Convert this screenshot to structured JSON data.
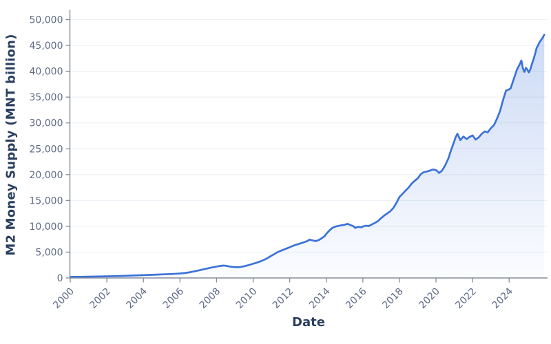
{
  "chart": {
    "y_axis_title": "M2 Money Supply (MNT billion)",
    "x_axis_title": "Date"
  },
  "chart_data": {
    "type": "area",
    "title": "",
    "xlabel": "Date",
    "ylabel": "M2 Money Supply (MNT billion)",
    "legend": "none",
    "grid": "horizontal-only",
    "x_ticks": [
      2000,
      2002,
      2004,
      2006,
      2008,
      2010,
      2012,
      2014,
      2016,
      2018,
      2020,
      2022,
      2024
    ],
    "y_ticks": [
      0,
      5000,
      10000,
      15000,
      20000,
      25000,
      30000,
      35000,
      40000,
      45000,
      50000
    ],
    "xlim": [
      2000,
      2026.1
    ],
    "ylim": [
      0,
      50000
    ],
    "colors": {
      "line": "#3b72d9",
      "fill_base": "#3b72d9",
      "fill_top_opacity": 0.26,
      "fill_bottom_opacity": 0.02,
      "axis_line": "#848b98",
      "tick_label": "#5d6a86",
      "grid_line": "#eef1f5",
      "title": "#2a3f5f"
    },
    "series": [
      {
        "name": "M2 Money Supply",
        "units": "MNT billion",
        "points": [
          [
            2000.0,
            210
          ],
          [
            2000.25,
            218
          ],
          [
            2000.5,
            228
          ],
          [
            2000.75,
            240
          ],
          [
            2001.0,
            252
          ],
          [
            2001.25,
            266
          ],
          [
            2001.5,
            280
          ],
          [
            2001.75,
            296
          ],
          [
            2002.0,
            315
          ],
          [
            2002.25,
            338
          ],
          [
            2002.5,
            362
          ],
          [
            2002.75,
            388
          ],
          [
            2003.0,
            418
          ],
          [
            2003.25,
            448
          ],
          [
            2003.5,
            478
          ],
          [
            2003.75,
            512
          ],
          [
            2004.0,
            552
          ],
          [
            2004.25,
            586
          ],
          [
            2004.5,
            618
          ],
          [
            2004.75,
            652
          ],
          [
            2005.0,
            688
          ],
          [
            2005.25,
            722
          ],
          [
            2005.5,
            760
          ],
          [
            2005.75,
            808
          ],
          [
            2006.0,
            866
          ],
          [
            2006.25,
            948
          ],
          [
            2006.5,
            1080
          ],
          [
            2006.75,
            1260
          ],
          [
            2007.0,
            1440
          ],
          [
            2007.25,
            1640
          ],
          [
            2007.5,
            1840
          ],
          [
            2007.75,
            2040
          ],
          [
            2008.0,
            2200
          ],
          [
            2008.17,
            2310
          ],
          [
            2008.33,
            2400
          ],
          [
            2008.5,
            2370
          ],
          [
            2008.67,
            2240
          ],
          [
            2008.83,
            2150
          ],
          [
            2009.0,
            2100
          ],
          [
            2009.17,
            2060
          ],
          [
            2009.33,
            2140
          ],
          [
            2009.5,
            2250
          ],
          [
            2009.67,
            2400
          ],
          [
            2009.83,
            2560
          ],
          [
            2010.0,
            2760
          ],
          [
            2010.17,
            2920
          ],
          [
            2010.33,
            3120
          ],
          [
            2010.5,
            3360
          ],
          [
            2010.67,
            3620
          ],
          [
            2010.83,
            3940
          ],
          [
            2011.0,
            4300
          ],
          [
            2011.17,
            4640
          ],
          [
            2011.33,
            4980
          ],
          [
            2011.5,
            5240
          ],
          [
            2011.67,
            5480
          ],
          [
            2011.83,
            5700
          ],
          [
            2012.0,
            5950
          ],
          [
            2012.17,
            6200
          ],
          [
            2012.33,
            6420
          ],
          [
            2012.5,
            6580
          ],
          [
            2012.67,
            6780
          ],
          [
            2012.83,
            6960
          ],
          [
            2013.0,
            7200
          ],
          [
            2013.08,
            7420
          ],
          [
            2013.25,
            7260
          ],
          [
            2013.42,
            7140
          ],
          [
            2013.58,
            7320
          ],
          [
            2013.75,
            7680
          ],
          [
            2013.92,
            8120
          ],
          [
            2014.0,
            8520
          ],
          [
            2014.17,
            9180
          ],
          [
            2014.33,
            9680
          ],
          [
            2014.5,
            9940
          ],
          [
            2014.67,
            10080
          ],
          [
            2014.83,
            10200
          ],
          [
            2015.0,
            10300
          ],
          [
            2015.17,
            10480
          ],
          [
            2015.33,
            10220
          ],
          [
            2015.5,
            9980
          ],
          [
            2015.58,
            9680
          ],
          [
            2015.75,
            9900
          ],
          [
            2015.92,
            9800
          ],
          [
            2016.0,
            9960
          ],
          [
            2016.17,
            10120
          ],
          [
            2016.33,
            10040
          ],
          [
            2016.5,
            10380
          ],
          [
            2016.67,
            10680
          ],
          [
            2016.83,
            11020
          ],
          [
            2017.0,
            11580
          ],
          [
            2017.17,
            12080
          ],
          [
            2017.33,
            12480
          ],
          [
            2017.5,
            12900
          ],
          [
            2017.67,
            13560
          ],
          [
            2017.83,
            14480
          ],
          [
            2018.0,
            15660
          ],
          [
            2018.17,
            16280
          ],
          [
            2018.33,
            16880
          ],
          [
            2018.5,
            17480
          ],
          [
            2018.67,
            18260
          ],
          [
            2018.83,
            18780
          ],
          [
            2019.0,
            19280
          ],
          [
            2019.17,
            20080
          ],
          [
            2019.33,
            20480
          ],
          [
            2019.5,
            20600
          ],
          [
            2019.67,
            20780
          ],
          [
            2019.83,
            21000
          ],
          [
            2020.0,
            20880
          ],
          [
            2020.17,
            20320
          ],
          [
            2020.33,
            20780
          ],
          [
            2020.5,
            21780
          ],
          [
            2020.67,
            23080
          ],
          [
            2020.83,
            24780
          ],
          [
            2021.0,
            26480
          ],
          [
            2021.08,
            27280
          ],
          [
            2021.17,
            27900
          ],
          [
            2021.33,
            26680
          ],
          [
            2021.5,
            27380
          ],
          [
            2021.67,
            26880
          ],
          [
            2021.83,
            27280
          ],
          [
            2022.0,
            27580
          ],
          [
            2022.17,
            26780
          ],
          [
            2022.33,
            27180
          ],
          [
            2022.5,
            27880
          ],
          [
            2022.67,
            28380
          ],
          [
            2022.83,
            28180
          ],
          [
            2023.0,
            28980
          ],
          [
            2023.17,
            29580
          ],
          [
            2023.33,
            30780
          ],
          [
            2023.5,
            32280
          ],
          [
            2023.67,
            34480
          ],
          [
            2023.83,
            36280
          ],
          [
            2023.92,
            36380
          ],
          [
            2024.0,
            36500
          ],
          [
            2024.08,
            36680
          ],
          [
            2024.25,
            38480
          ],
          [
            2024.42,
            40280
          ],
          [
            2024.58,
            41380
          ],
          [
            2024.67,
            42080
          ],
          [
            2024.75,
            40580
          ],
          [
            2024.83,
            39880
          ],
          [
            2024.92,
            40680
          ],
          [
            2025.0,
            40280
          ],
          [
            2025.08,
            39780
          ],
          [
            2025.17,
            40480
          ],
          [
            2025.25,
            41480
          ],
          [
            2025.33,
            42280
          ],
          [
            2025.42,
            43380
          ],
          [
            2025.5,
            44480
          ],
          [
            2025.67,
            45680
          ],
          [
            2025.83,
            46480
          ],
          [
            2025.92,
            47080
          ]
        ]
      }
    ]
  }
}
